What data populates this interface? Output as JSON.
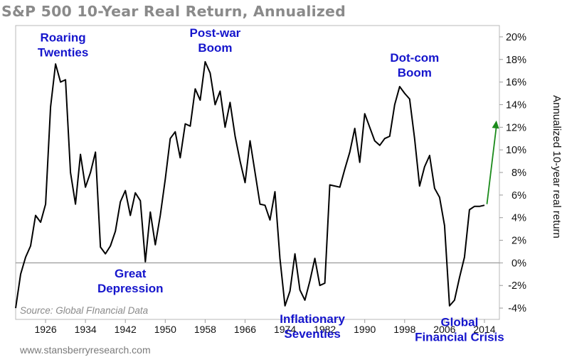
{
  "footer": "www.stansberryresearch.com",
  "chart_data": {
    "type": "line",
    "title": "S&P 500 10-Year Real Return, Annualized",
    "ylabel": "Annualized 10-year real return",
    "xlabel": "",
    "source": "Source: Global FInancial Data",
    "xlim": [
      1920,
      2017
    ],
    "ylim": [
      -5,
      21
    ],
    "x_ticks": [
      "1926",
      "1934",
      "1942",
      "1950",
      "1958",
      "1966",
      "1974",
      "1982",
      "1990",
      "1998",
      "2006",
      "2014"
    ],
    "y_ticks": [
      "20%",
      "18%",
      "16%",
      "14%",
      "12%",
      "10%",
      "8%",
      "6%",
      "4%",
      "2%",
      "0%",
      "-2%",
      "-4%"
    ],
    "grid": false,
    "zero_line": true,
    "colors": {
      "line": "#000000",
      "annotation": "#1515cc",
      "arrow": "#1a8a1a",
      "title": "#8a8a8a"
    },
    "series": [
      {
        "x": [
          1920,
          1921,
          1922,
          1923,
          1924,
          1925,
          1926,
          1927,
          1928,
          1929,
          1930,
          1931,
          1932,
          1933,
          1934,
          1935,
          1936,
          1937,
          1938,
          1939,
          1940,
          1941,
          1942,
          1943,
          1944,
          1945,
          1946,
          1947,
          1948,
          1949,
          1950,
          1951,
          1952,
          1953,
          1954,
          1955,
          1956,
          1957,
          1958,
          1959,
          1960,
          1961,
          1962,
          1963,
          1964,
          1965,
          1966,
          1967,
          1968,
          1969,
          1970,
          1971,
          1972,
          1973,
          1974,
          1975,
          1976,
          1977,
          1978,
          1979,
          1980,
          1981,
          1982,
          1983,
          1984,
          1985,
          1986,
          1987,
          1988,
          1989,
          1990,
          1991,
          1992,
          1993,
          1994,
          1995,
          1996,
          1997,
          1998,
          1999,
          2000,
          2001,
          2002,
          2003,
          2004,
          2005,
          2006,
          2007,
          2008,
          2009,
          2010,
          2011,
          2012,
          2013,
          2014
        ],
        "values": [
          -4.0,
          -1.0,
          0.5,
          1.5,
          4.2,
          3.6,
          5.2,
          13.8,
          17.6,
          16.0,
          16.2,
          8.0,
          5.2,
          9.6,
          6.7,
          8.0,
          9.8,
          1.4,
          0.8,
          1.5,
          2.8,
          5.4,
          6.4,
          4.2,
          6.2,
          5.5,
          0.1,
          4.5,
          1.6,
          4.2,
          7.4,
          11.0,
          11.6,
          9.3,
          12.3,
          12.1,
          15.4,
          14.4,
          17.8,
          16.8,
          14.0,
          15.2,
          12.0,
          14.2,
          11.2,
          9.0,
          7.1,
          10.8,
          8.0,
          5.2,
          5.1,
          3.8,
          6.3,
          0.4,
          -3.8,
          -2.5,
          0.8,
          -2.4,
          -3.3,
          -1.6,
          0.4,
          -2.0,
          -1.8,
          6.9,
          6.8,
          6.7,
          8.3,
          9.8,
          11.9,
          8.9,
          13.2,
          12.0,
          10.8,
          10.4,
          11.0,
          11.2,
          14.0,
          15.6,
          15.0,
          14.5,
          11.0,
          6.8,
          8.5,
          9.5,
          6.6,
          5.8,
          3.3,
          -3.8,
          -3.3,
          -1.3,
          0.5,
          4.7,
          5.0,
          5.0,
          5.1
        ]
      }
    ],
    "annotations": [
      {
        "lines": [
          "Roaring",
          "Twenties"
        ],
        "x": 1929.5,
        "y": 19.6
      },
      {
        "lines": [
          "Post-war",
          "Boom"
        ],
        "x": 1960,
        "y": 20.0
      },
      {
        "lines": [
          "Dot-com",
          "Boom"
        ],
        "x": 2000,
        "y": 17.8
      },
      {
        "lines": [
          "Great",
          "Depression"
        ],
        "x": 1943,
        "y": -1.3
      },
      {
        "lines": [
          "Inflationary",
          "Seventies"
        ],
        "x": 1979.5,
        "y": -5.3
      },
      {
        "lines": [
          "Global",
          "Financial Crisis"
        ],
        "x": 2009,
        "y": -5.6
      }
    ],
    "arrow": {
      "from": [
        2014.5,
        5.2
      ],
      "to": [
        2016.4,
        12.6
      ]
    }
  }
}
